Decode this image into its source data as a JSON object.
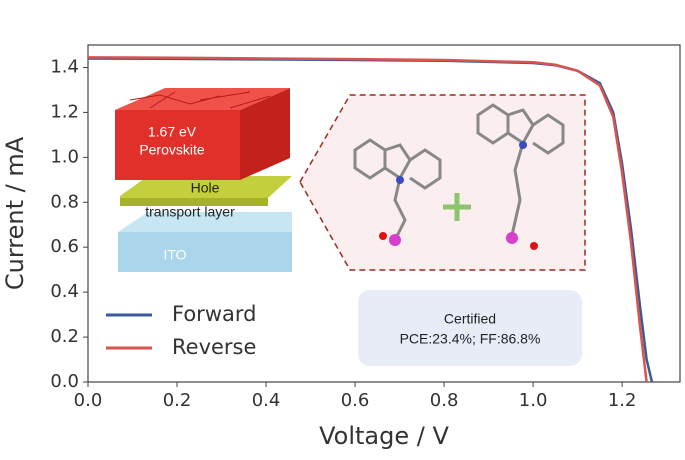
{
  "chart_data": {
    "type": "line",
    "xlabel": "Voltage / V",
    "ylabel": "Current / mA",
    "x": [
      0,
      0.2,
      0.4,
      0.6,
      0.8,
      1.0,
      1.05,
      1.1,
      1.15,
      1.18,
      1.2,
      1.22,
      1.24,
      1.255,
      1.267
    ],
    "series": [
      {
        "name": "Forward",
        "color": "#3a5a98",
        "values": [
          1.44,
          1.438,
          1.436,
          1.433,
          1.43,
          1.42,
          1.41,
          1.385,
          1.33,
          1.2,
          0.97,
          0.68,
          0.34,
          0.1,
          0
        ]
      },
      {
        "name": "Reverse",
        "color": "#d9534f",
        "values": [
          1.445,
          1.443,
          1.44,
          1.437,
          1.433,
          1.423,
          1.412,
          1.385,
          1.32,
          1.18,
          0.93,
          0.62,
          0.25,
          0,
          null
        ]
      }
    ],
    "xlim": [
      0,
      1.33
    ],
    "ylim": [
      0,
      1.5
    ],
    "xticks": [
      {
        "value": 0,
        "label": "0.0"
      },
      {
        "value": 0.2,
        "label": "0.2"
      },
      {
        "value": 0.4,
        "label": "0.4"
      },
      {
        "value": 0.6,
        "label": "0.6"
      },
      {
        "value": 0.8,
        "label": "0.8"
      },
      {
        "value": 1.0,
        "label": "1.0"
      },
      {
        "value": 1.2,
        "label": "1.2"
      }
    ],
    "yticks": [
      {
        "value": 0,
        "label": "0.0"
      },
      {
        "value": 0.2,
        "label": "0.2"
      },
      {
        "value": 0.4,
        "label": "0.4"
      },
      {
        "value": 0.6,
        "label": "0.6"
      },
      {
        "value": 0.8,
        "label": "0.8"
      },
      {
        "value": 1.0,
        "label": "1.0"
      },
      {
        "value": 1.2,
        "label": "1.2"
      },
      {
        "value": 1.4,
        "label": "1.4"
      }
    ],
    "grid": false
  },
  "insets": {
    "stack": {
      "bandgap": "1.67 eV",
      "absorber": "Perovskite",
      "htl_line1": "Hole",
      "htl_line2": "transport layer",
      "substrate": "ITO"
    },
    "certified": {
      "title": "Certified",
      "text": "PCE:23.4%; FF:86.8%"
    }
  }
}
